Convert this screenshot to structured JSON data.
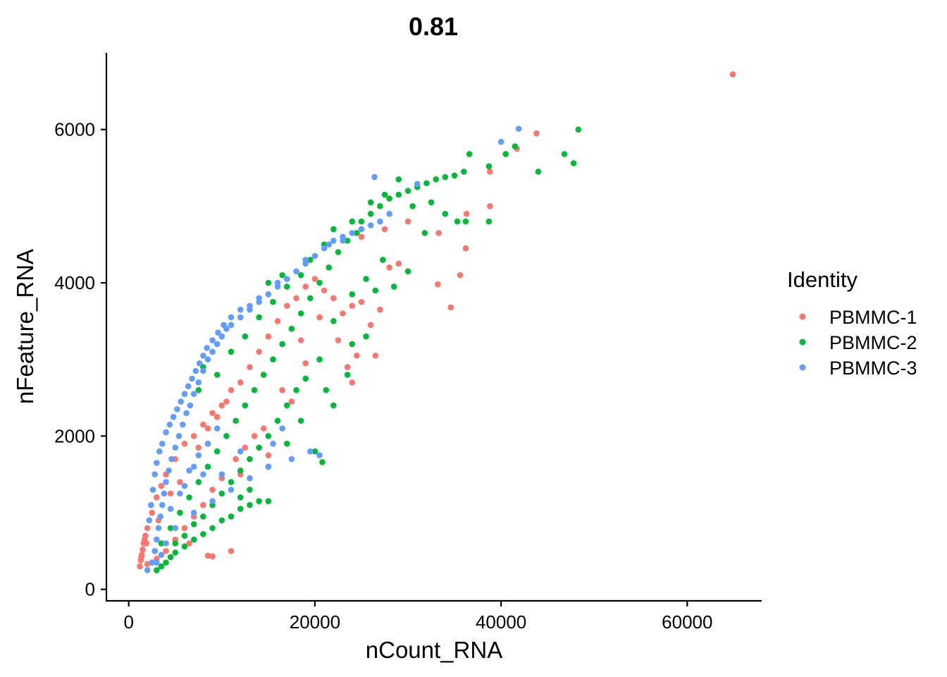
{
  "chart_data": {
    "type": "scatter",
    "title": "0.81",
    "xlabel": "nCount_RNA",
    "ylabel": "nFeature_RNA",
    "xlim": [
      -2400,
      68000
    ],
    "ylim": [
      -150,
      7000
    ],
    "xticks": [
      0,
      20000,
      40000,
      60000
    ],
    "xtick_labels": [
      "0",
      "20000",
      "40000",
      "60000"
    ],
    "yticks": [
      0,
      2000,
      4000,
      6000
    ],
    "ytick_labels": [
      "0",
      "2000",
      "4000",
      "6000"
    ],
    "grid": false,
    "legend": {
      "title": "Identity",
      "placement": "right"
    },
    "series": [
      {
        "name": "PBMMC-1",
        "color": "#F8766D",
        "points": [
          [
            1200,
            300
          ],
          [
            1300,
            380
          ],
          [
            1400,
            450
          ],
          [
            1500,
            520
          ],
          [
            1600,
            600
          ],
          [
            1800,
            700
          ],
          [
            2000,
            800
          ],
          [
            2200,
            900
          ],
          [
            1350,
            420
          ],
          [
            1700,
            650
          ],
          [
            2500,
            1000
          ],
          [
            3000,
            1200
          ],
          [
            3500,
            1350
          ],
          [
            4000,
            1500
          ],
          [
            5000,
            1700
          ],
          [
            6000,
            1900
          ],
          [
            7000,
            2000
          ],
          [
            8000,
            2150
          ],
          [
            9000,
            2300
          ],
          [
            10000,
            2400
          ],
          [
            11000,
            2600
          ],
          [
            12000,
            2700
          ],
          [
            13000,
            2900
          ],
          [
            14000,
            3100
          ],
          [
            15000,
            3300
          ],
          [
            16000,
            3500
          ],
          [
            17000,
            3700
          ],
          [
            18000,
            3800
          ],
          [
            19000,
            3950
          ],
          [
            20000,
            4050
          ],
          [
            21000,
            3900
          ],
          [
            22000,
            3800
          ],
          [
            23000,
            3600
          ],
          [
            24000,
            3700
          ],
          [
            25000,
            3750
          ],
          [
            26000,
            3450
          ],
          [
            27000,
            3650
          ],
          [
            28000,
            4200
          ],
          [
            29000,
            4250
          ],
          [
            17500,
            3400
          ],
          [
            18500,
            3250
          ],
          [
            20500,
            3550
          ],
          [
            22500,
            3250
          ],
          [
            24500,
            3050
          ],
          [
            26500,
            3050
          ],
          [
            23500,
            2900
          ],
          [
            24000,
            2700
          ],
          [
            19000,
            2950
          ],
          [
            16500,
            2600
          ],
          [
            17500,
            2450
          ],
          [
            14500,
            2100
          ],
          [
            13500,
            2000
          ],
          [
            12500,
            1850
          ],
          [
            11500,
            1700
          ],
          [
            10000,
            1450
          ],
          [
            9000,
            1300
          ],
          [
            8000,
            1100
          ],
          [
            7000,
            950
          ],
          [
            6000,
            800
          ],
          [
            5000,
            650
          ],
          [
            4000,
            500
          ],
          [
            3000,
            400
          ],
          [
            2500,
            350
          ],
          [
            2000,
            330
          ],
          [
            11000,
            500
          ],
          [
            9000,
            430
          ],
          [
            8500,
            440
          ],
          [
            6500,
            600
          ],
          [
            30000,
            4800
          ],
          [
            33300,
            4650
          ],
          [
            33200,
            3980
          ],
          [
            34600,
            3680
          ],
          [
            35600,
            4100
          ],
          [
            36200,
            4450
          ],
          [
            36300,
            4900
          ],
          [
            38800,
            5000
          ],
          [
            38800,
            5450
          ],
          [
            41700,
            5750
          ],
          [
            43800,
            5950
          ],
          [
            64900,
            6720
          ],
          [
            27500,
            4700
          ],
          [
            25000,
            4600
          ],
          [
            10500,
            2450
          ],
          [
            9500,
            2250
          ],
          [
            8500,
            2100
          ],
          [
            7500,
            1850
          ],
          [
            12000,
            1500
          ],
          [
            15000,
            1750
          ],
          [
            4500,
            1250
          ],
          [
            5500,
            1400
          ],
          [
            3200,
            900
          ],
          [
            1900,
            600
          ]
        ]
      },
      {
        "name": "PBMMC-2",
        "color": "#00BA38",
        "points": [
          [
            3000,
            250
          ],
          [
            3500,
            300
          ],
          [
            4000,
            350
          ],
          [
            4500,
            420
          ],
          [
            5000,
            480
          ],
          [
            6000,
            560
          ],
          [
            7000,
            650
          ],
          [
            8000,
            720
          ],
          [
            9000,
            800
          ],
          [
            10000,
            900
          ],
          [
            11000,
            950
          ],
          [
            12000,
            1050
          ],
          [
            13000,
            1100
          ],
          [
            14000,
            1150
          ],
          [
            15000,
            1150
          ],
          [
            3500,
            600
          ],
          [
            4500,
            800
          ],
          [
            5500,
            1000
          ],
          [
            6500,
            1200
          ],
          [
            7500,
            1400
          ],
          [
            8500,
            1600
          ],
          [
            9500,
            1800
          ],
          [
            10500,
            2000
          ],
          [
            11500,
            2200
          ],
          [
            12500,
            2400
          ],
          [
            13500,
            2600
          ],
          [
            14500,
            2800
          ],
          [
            15500,
            3000
          ],
          [
            16500,
            3200
          ],
          [
            17500,
            3400
          ],
          [
            18500,
            3600
          ],
          [
            19500,
            3800
          ],
          [
            20500,
            4000
          ],
          [
            21500,
            4200
          ],
          [
            22500,
            4400
          ],
          [
            23500,
            4550
          ],
          [
            24500,
            4650
          ],
          [
            25000,
            4800
          ],
          [
            26000,
            4900
          ],
          [
            27000,
            5000
          ],
          [
            28000,
            5100
          ],
          [
            29000,
            5150
          ],
          [
            30000,
            5200
          ],
          [
            31000,
            5250
          ],
          [
            32000,
            5300
          ],
          [
            33000,
            5350
          ],
          [
            34000,
            5380
          ],
          [
            35000,
            5400
          ],
          [
            36000,
            5450
          ],
          [
            36600,
            5680
          ],
          [
            38700,
            5520
          ],
          [
            40500,
            5680
          ],
          [
            41500,
            5780
          ],
          [
            44000,
            5450
          ],
          [
            46800,
            5680
          ],
          [
            47800,
            5560
          ],
          [
            48300,
            6000
          ],
          [
            32500,
            5050
          ],
          [
            34000,
            4900
          ],
          [
            35300,
            4800
          ],
          [
            36200,
            4800
          ],
          [
            38700,
            4800
          ],
          [
            31800,
            4650
          ],
          [
            30000,
            4150
          ],
          [
            28500,
            3950
          ],
          [
            27300,
            4300
          ],
          [
            25500,
            4050
          ],
          [
            26500,
            3900
          ],
          [
            24000,
            3850
          ],
          [
            22000,
            3500
          ],
          [
            20500,
            3000
          ],
          [
            19000,
            2750
          ],
          [
            18000,
            2600
          ],
          [
            17000,
            2400
          ],
          [
            16000,
            2200
          ],
          [
            15000,
            2000
          ],
          [
            14000,
            1850
          ],
          [
            13000,
            1700
          ],
          [
            12000,
            1550
          ],
          [
            11000,
            1400
          ],
          [
            10000,
            1250
          ],
          [
            9000,
            1100
          ],
          [
            8000,
            950
          ],
          [
            7000,
            850
          ],
          [
            6000,
            700
          ],
          [
            5000,
            600
          ],
          [
            20800,
            1660
          ],
          [
            21200,
            2600
          ],
          [
            22000,
            2400
          ],
          [
            23500,
            2800
          ],
          [
            24000,
            3200
          ],
          [
            25500,
            3300
          ],
          [
            8000,
            2900
          ],
          [
            7500,
            2600
          ],
          [
            9500,
            2800
          ],
          [
            11000,
            3100
          ],
          [
            12500,
            3300
          ],
          [
            14000,
            3550
          ],
          [
            15500,
            3750
          ],
          [
            17000,
            3950
          ],
          [
            18500,
            4100
          ],
          [
            19500,
            4300
          ],
          [
            20000,
            1800
          ],
          [
            18500,
            2200
          ],
          [
            17000,
            1900
          ],
          [
            15000,
            1600
          ],
          [
            13000,
            1300
          ],
          [
            12000,
            1200
          ],
          [
            15000,
            4000
          ],
          [
            16500,
            4100
          ],
          [
            21000,
            4500
          ],
          [
            22000,
            4700
          ],
          [
            24000,
            4800
          ],
          [
            26000,
            5050
          ],
          [
            27500,
            5150
          ],
          [
            29000,
            5350
          ],
          [
            30500,
            5000
          ]
        ]
      },
      {
        "name": "PBMMC-3",
        "color": "#619CFF",
        "points": [
          [
            2000,
            250
          ],
          [
            2500,
            350
          ],
          [
            2800,
            500
          ],
          [
            3000,
            650
          ],
          [
            3200,
            800
          ],
          [
            3400,
            950
          ],
          [
            3600,
            1100
          ],
          [
            3800,
            1250
          ],
          [
            4000,
            1400
          ],
          [
            4300,
            1550
          ],
          [
            4600,
            1700
          ],
          [
            5000,
            1850
          ],
          [
            5400,
            2000
          ],
          [
            5800,
            2150
          ],
          [
            6200,
            2300
          ],
          [
            6600,
            2400
          ],
          [
            7000,
            2550
          ],
          [
            7500,
            2700
          ],
          [
            8000,
            2850
          ],
          [
            8500,
            3000
          ],
          [
            9000,
            3100
          ],
          [
            9500,
            3200
          ],
          [
            10000,
            3300
          ],
          [
            10500,
            3400
          ],
          [
            11000,
            3450
          ],
          [
            12000,
            3550
          ],
          [
            13000,
            3650
          ],
          [
            14000,
            3750
          ],
          [
            15000,
            3850
          ],
          [
            16000,
            3950
          ],
          [
            17000,
            4050
          ],
          [
            18000,
            4150
          ],
          [
            19000,
            4250
          ],
          [
            20000,
            4350
          ],
          [
            21000,
            4450
          ],
          [
            22000,
            4550
          ],
          [
            23000,
            4600
          ],
          [
            24000,
            4650
          ],
          [
            25000,
            4700
          ],
          [
            26000,
            4750
          ],
          [
            27000,
            4800
          ],
          [
            28000,
            4900
          ],
          [
            26400,
            5380
          ],
          [
            31000,
            5290
          ],
          [
            40000,
            5840
          ],
          [
            41900,
            6010
          ],
          [
            20500,
            1750
          ],
          [
            19500,
            1800
          ],
          [
            17500,
            1700
          ],
          [
            15000,
            1600
          ],
          [
            13000,
            1450
          ],
          [
            11000,
            1300
          ],
          [
            9000,
            1150
          ],
          [
            7000,
            1000
          ],
          [
            5000,
            800
          ],
          [
            4000,
            600
          ],
          [
            3500,
            450
          ],
          [
            3000,
            350
          ],
          [
            10000,
            1500
          ],
          [
            12000,
            1800
          ],
          [
            8500,
            1900
          ],
          [
            9500,
            2100
          ],
          [
            7500,
            1750
          ],
          [
            6000,
            1350
          ],
          [
            5500,
            1250
          ],
          [
            4500,
            1050
          ],
          [
            2200,
            900
          ],
          [
            2400,
            1100
          ],
          [
            2600,
            1300
          ],
          [
            2800,
            1500
          ],
          [
            3000,
            1650
          ],
          [
            3300,
            1800
          ],
          [
            3600,
            1900
          ],
          [
            4000,
            2050
          ],
          [
            4400,
            2150
          ],
          [
            4800,
            2250
          ],
          [
            5200,
            2350
          ],
          [
            5600,
            2450
          ],
          [
            6000,
            2550
          ],
          [
            6400,
            2650
          ],
          [
            6800,
            2750
          ],
          [
            7200,
            2850
          ],
          [
            7600,
            2950
          ],
          [
            8000,
            3050
          ],
          [
            8400,
            3150
          ],
          [
            9000,
            3250
          ],
          [
            9600,
            3350
          ],
          [
            10200,
            3450
          ],
          [
            11000,
            3550
          ],
          [
            12000,
            3650
          ],
          [
            13000,
            3700
          ],
          [
            14000,
            3800
          ],
          [
            16000,
            4000
          ],
          [
            19000,
            4300
          ],
          [
            21500,
            4500
          ],
          [
            23000,
            4550
          ],
          [
            15500,
            1900
          ],
          [
            16500,
            2100
          ],
          [
            6500,
            1550
          ],
          [
            7000,
            1600
          ],
          [
            8000,
            1500
          ]
        ]
      }
    ]
  }
}
